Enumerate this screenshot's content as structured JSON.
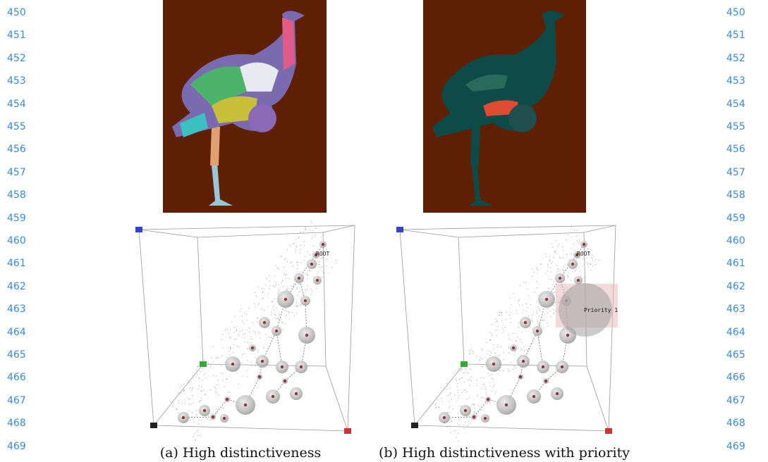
{
  "line_numbers_left": [
    "450",
    "451",
    "452",
    "453",
    "454",
    "455",
    "456",
    "457",
    "458",
    "459",
    "460",
    "461",
    "462",
    "463",
    "464",
    "465",
    "466",
    "467",
    "468",
    "469"
  ],
  "line_numbers_right": [
    "450",
    "451",
    "452",
    "453",
    "454",
    "455",
    "456",
    "457",
    "458",
    "459",
    "460",
    "461",
    "462",
    "463",
    "464",
    "465",
    "466",
    "467",
    "468",
    "469"
  ],
  "figures": [
    {
      "caption": "(a) High distinctiveness",
      "plot_labels": [
        "ROOT"
      ]
    },
    {
      "caption": "(b) High distinctiveness with priority",
      "plot_labels": [
        "ROOT",
        "Priority 1"
      ]
    }
  ]
}
